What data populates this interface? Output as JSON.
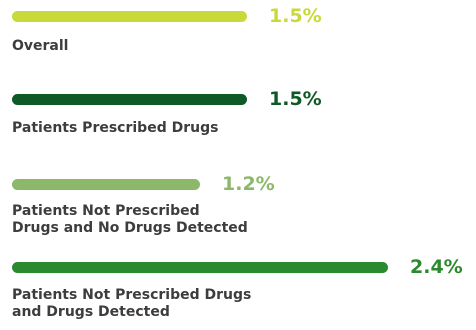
{
  "chart_data": {
    "type": "bar",
    "orientation": "horizontal",
    "value_suffix": "%",
    "categories": [
      "Overall",
      "Patients Prescribed Drugs",
      "Patients Not Prescribed\nDrugs and No Drugs Detected",
      "Patients Not Prescribed Drugs\nand Drugs Detected"
    ],
    "values": [
      1.5,
      1.5,
      1.2,
      2.4
    ],
    "value_labels": [
      "1.5%",
      "1.5%",
      "1.2%",
      "2.4%"
    ],
    "colors": [
      "#c8d93a",
      "#0e5a26",
      "#8cb86a",
      "#2c8a2e"
    ],
    "label_color": "#3d3d3d",
    "xlim": [
      0,
      2.4
    ],
    "grid": false,
    "legend": "none"
  }
}
